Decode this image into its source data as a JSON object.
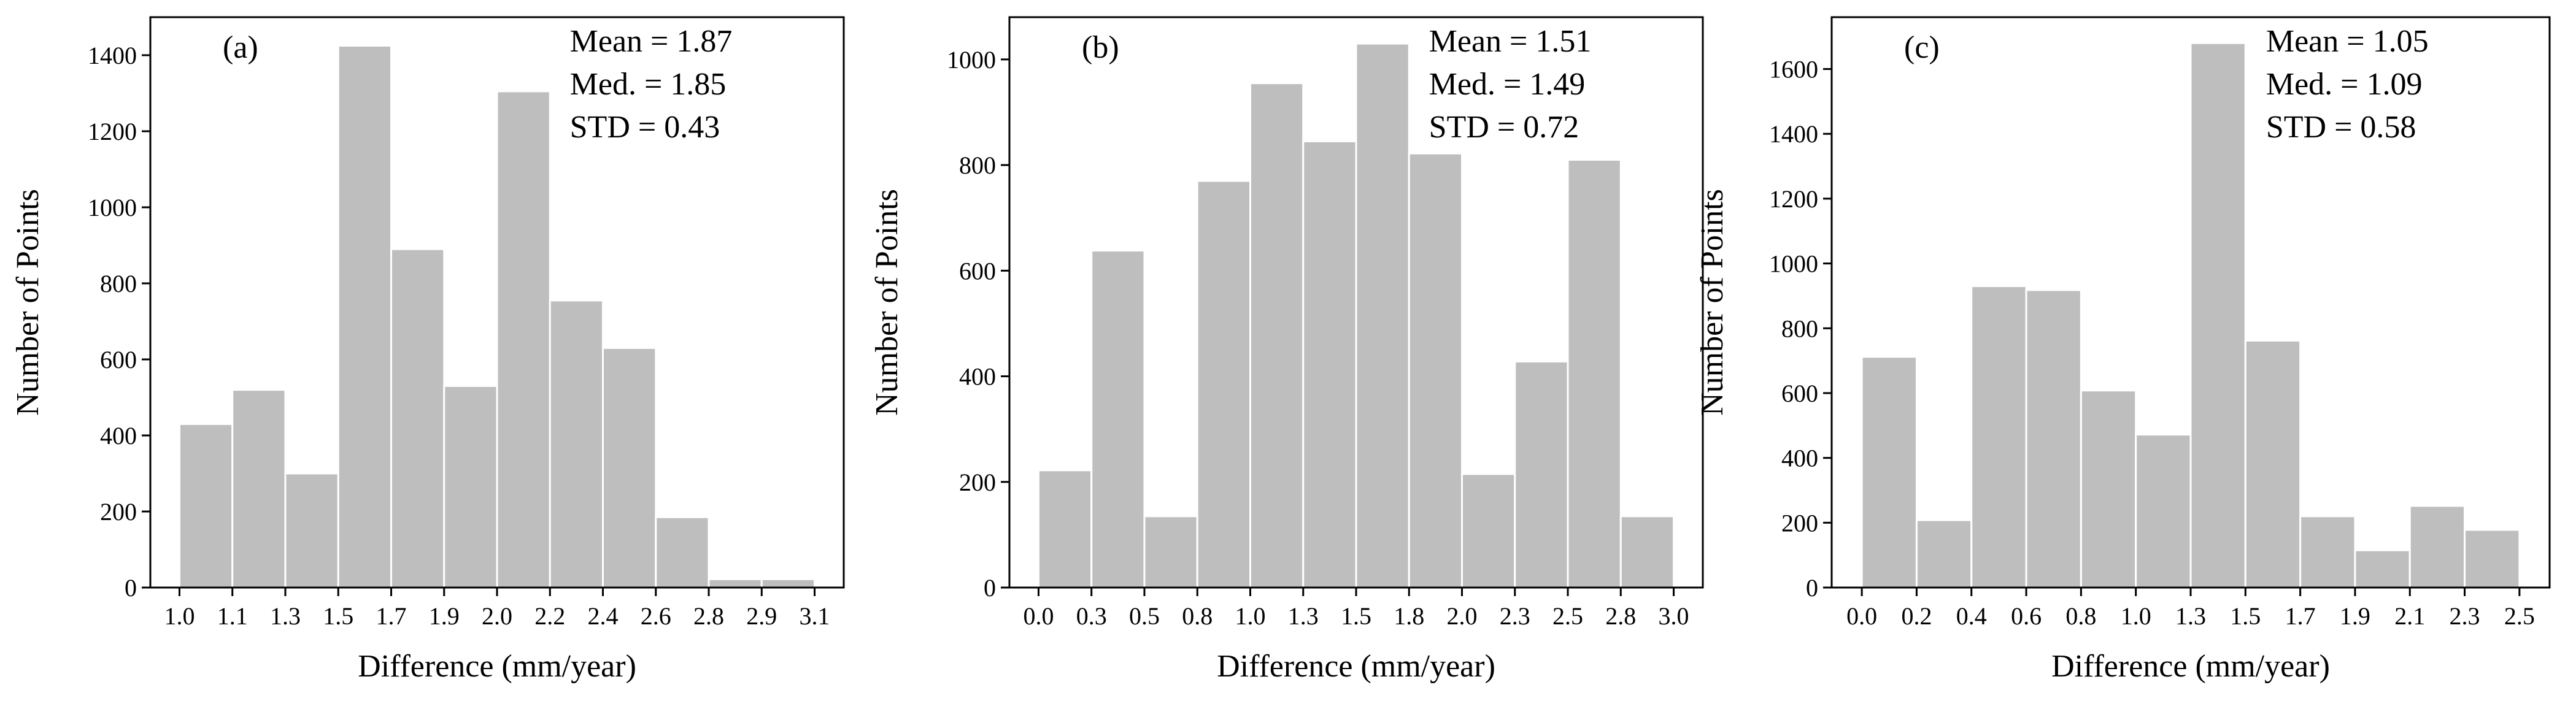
{
  "chart_data": [
    {
      "type": "bar",
      "panel_label": "(a)",
      "categories": [
        "1.0",
        "1.1",
        "1.3",
        "1.5",
        "1.7",
        "1.9",
        "2.0",
        "2.2",
        "2.4",
        "2.6",
        "2.8",
        "2.9"
      ],
      "values": [
        430,
        520,
        300,
        1425,
        890,
        530,
        1305,
        755,
        630,
        185,
        22,
        22
      ],
      "xticks": [
        "1.0",
        "1.1",
        "1.3",
        "1.5",
        "1.7",
        "1.9",
        "2.0",
        "2.2",
        "2.4",
        "2.6",
        "2.8",
        "2.9",
        "3.1"
      ],
      "yticks": [
        "0",
        "200",
        "400",
        "600",
        "800",
        "1000",
        "1200",
        "1400"
      ],
      "ylim": [
        0,
        1500
      ],
      "xlabel": "Difference (mm/year)",
      "ylabel": "Number of Points",
      "stats": [
        "Mean = 1.87",
        "Med. = 1.85",
        "STD = 0.43"
      ]
    },
    {
      "type": "bar",
      "panel_label": "(b)",
      "categories": [
        "0.0",
        "0.3",
        "0.5",
        "0.8",
        "1.0",
        "1.3",
        "1.5",
        "1.8",
        "2.0",
        "2.3",
        "2.5",
        "2.8"
      ],
      "values": [
        222,
        638,
        135,
        770,
        955,
        845,
        1030,
        822,
        215,
        428,
        810,
        135
      ],
      "xticks": [
        "0.0",
        "0.3",
        "0.5",
        "0.8",
        "1.0",
        "1.3",
        "1.5",
        "1.8",
        "2.0",
        "2.3",
        "2.5",
        "2.8",
        "3.0"
      ],
      "yticks": [
        "0",
        "200",
        "400",
        "600",
        "800",
        "1000"
      ],
      "ylim": [
        0,
        1080
      ],
      "xlabel": "Difference (mm/year)",
      "ylabel": "Number of Points",
      "stats": [
        "Mean = 1.51",
        "Med. = 1.49",
        "STD = 0.72"
      ]
    },
    {
      "type": "bar",
      "panel_label": "(c)",
      "categories": [
        "0.0",
        "0.2",
        "0.4",
        "0.6",
        "0.8",
        "1.0",
        "1.3",
        "1.5",
        "1.7",
        "1.9",
        "2.1",
        "2.3"
      ],
      "values": [
        712,
        208,
        930,
        918,
        608,
        472,
        1680,
        762,
        220,
        115,
        252,
        178
      ],
      "xticks": [
        "0.0",
        "0.2",
        "0.4",
        "0.6",
        "0.8",
        "1.0",
        "1.3",
        "1.5",
        "1.7",
        "1.9",
        "2.1",
        "2.3",
        "2.5"
      ],
      "yticks": [
        "0",
        "200",
        "400",
        "600",
        "800",
        "1000",
        "1200",
        "1400",
        "1600"
      ],
      "ylim": [
        0,
        1760
      ],
      "xlabel": "Difference (mm/year)",
      "ylabel": "Number of Points",
      "stats": [
        "Mean = 1.05",
        "Med. = 1.09",
        "STD = 0.58"
      ]
    }
  ]
}
